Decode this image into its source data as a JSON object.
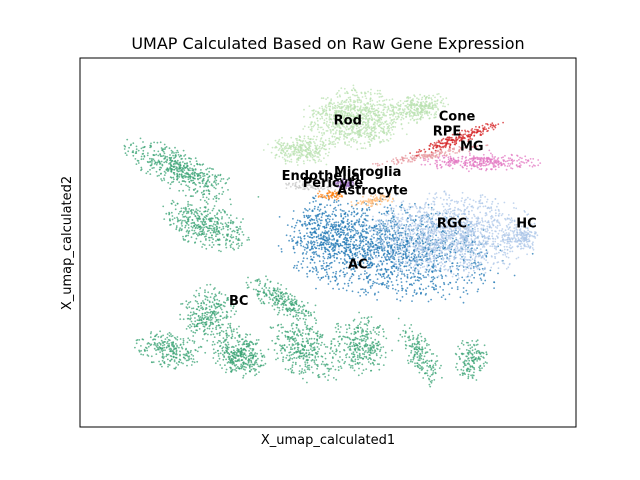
{
  "chart_data": {
    "type": "scatter",
    "title": "UMAP Calculated Based on Raw Gene Expression",
    "xlabel": "X_umap_calculated1",
    "ylabel": "X_umap_calculated2",
    "grid": false,
    "ticks": false,
    "legend": "on-data",
    "xlim": [
      0,
      100
    ],
    "ylim": [
      0,
      100
    ],
    "clusters": [
      {
        "name": "Rod",
        "color": "#b9e2b0",
        "label_pos": [
          54,
          82
        ]
      },
      {
        "name": "Cone",
        "color": "#d62728",
        "label_pos": [
          76,
          83
        ]
      },
      {
        "name": "RPE",
        "color": "#e7969c",
        "label_pos": [
          74,
          79
        ]
      },
      {
        "name": "MG",
        "color": "#e377c2",
        "label_pos": [
          79,
          75
        ]
      },
      {
        "name": "Endothelial",
        "color": "#c7c7c7",
        "label_pos": [
          49,
          67
        ]
      },
      {
        "name": "Microglia",
        "color": "#9467bd",
        "label_pos": [
          58,
          68
        ]
      },
      {
        "name": "Pericyte",
        "color": "#ff7f0e",
        "label_pos": [
          51,
          65
        ]
      },
      {
        "name": "Astrocyte",
        "color": "#ffbb78",
        "label_pos": [
          59,
          63
        ]
      },
      {
        "name": "RGC",
        "color": "#aec7e8",
        "label_pos": [
          75,
          54
        ]
      },
      {
        "name": "HC",
        "color": "#aec7e8",
        "label_pos": [
          90,
          54
        ]
      },
      {
        "name": "AC",
        "color": "#1f77b4",
        "label_pos": [
          56,
          43
        ]
      },
      {
        "name": "BC",
        "color": "#3aa374",
        "label_pos": [
          32,
          33
        ]
      }
    ]
  }
}
